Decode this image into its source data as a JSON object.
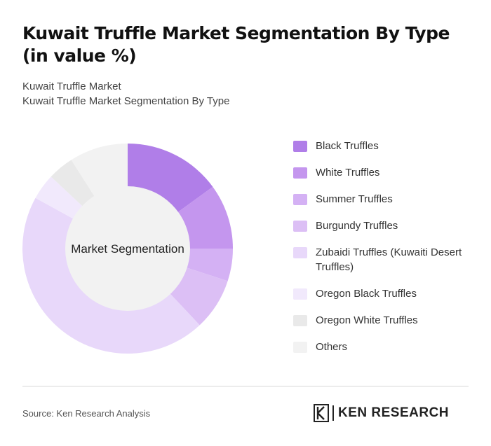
{
  "title": "Kuwait Truffle Market Segmentation By Type (in value %)",
  "subtitle_line1": "Kuwait Truffle Market",
  "subtitle_line2": "Kuwait Truffle Market Segmentation By Type",
  "center_label": "Market Segmentation",
  "source": "Source: Ken Research Analysis",
  "logo_text": "KEN RESEARCH",
  "chart_data": {
    "type": "pie",
    "donut": true,
    "categories": [
      "Black Truffles",
      "White Truffles",
      "Summer Truffles",
      "Burgundy Truffles",
      "Zubaidi Truffles (Kuwaiti Desert Truffles)",
      "Oregon Black Truffles",
      "Oregon White Truffles",
      "Others"
    ],
    "values": [
      15,
      10,
      5,
      8,
      45,
      4,
      4,
      9
    ],
    "colors": [
      "#b07ee8",
      "#c496ee",
      "#d4b1f4",
      "#dcbff5",
      "#e8d8fa",
      "#f1e9fc",
      "#e9e9e9",
      "#f2f2f2"
    ],
    "legend_position": "right",
    "grid": false
  }
}
